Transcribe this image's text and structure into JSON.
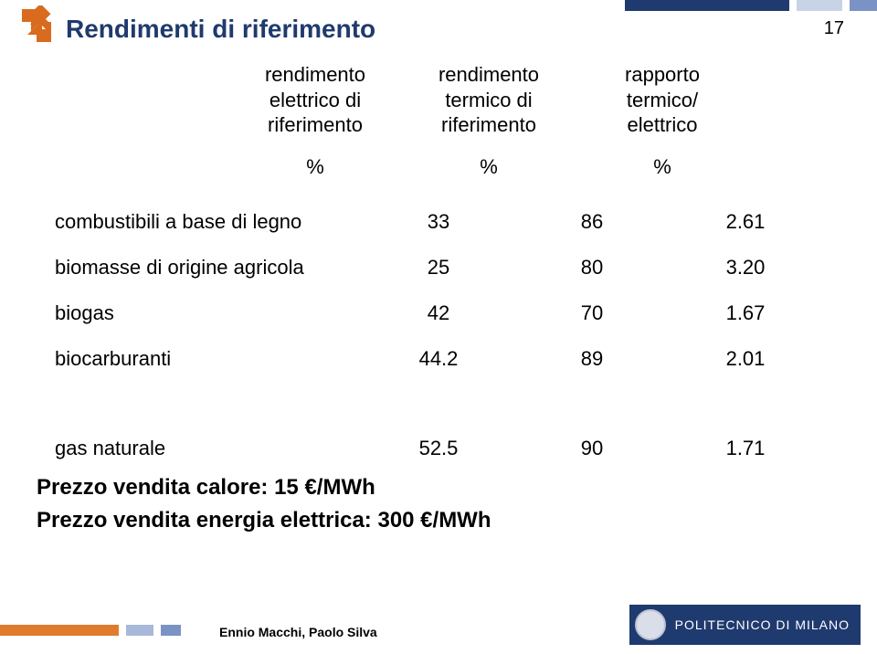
{
  "page": {
    "title": "Rendimenti di riferimento",
    "number": "17",
    "colors": {
      "title": "#1f3a6e",
      "navy": "#1f3a6e",
      "lightblue": "#c9d3e6",
      "midblue": "#7b93c4",
      "orange": "#e07b2e",
      "arrow": "#d96b1f"
    }
  },
  "columns": {
    "c1l1": "rendimento",
    "c1l2": "elettrico di",
    "c1l3": "riferimento",
    "c2l1": "rendimento",
    "c2l2": "termico di",
    "c2l3": "riferimento",
    "c3l1": "rapporto",
    "c3l2": "termico/",
    "c3l3": "elettrico",
    "unit": "%"
  },
  "rows": [
    {
      "label": "combustibili a base di legno",
      "v1": "33",
      "v2": "86",
      "v3": "2.61"
    },
    {
      "label": "biomasse di origine agricola",
      "v1": "25",
      "v2": "80",
      "v3": "3.20"
    },
    {
      "label": "biogas",
      "v1": "42",
      "v2": "70",
      "v3": "1.67"
    },
    {
      "label": "biocarburanti",
      "v1": "44.2",
      "v2": "89",
      "v3": "2.01"
    }
  ],
  "gas": {
    "label": "gas naturale",
    "v1": "52.5",
    "v2": "90",
    "v3": "1.71"
  },
  "notes": {
    "n1": "Prezzo vendita calore: 15 €/MWh",
    "n2": "Prezzo vendita energia elettrica: 300 €/MWh"
  },
  "footer": {
    "authors": "Ennio Macchi, Paolo Silva",
    "org": "POLITECNICO DI MILANO"
  }
}
